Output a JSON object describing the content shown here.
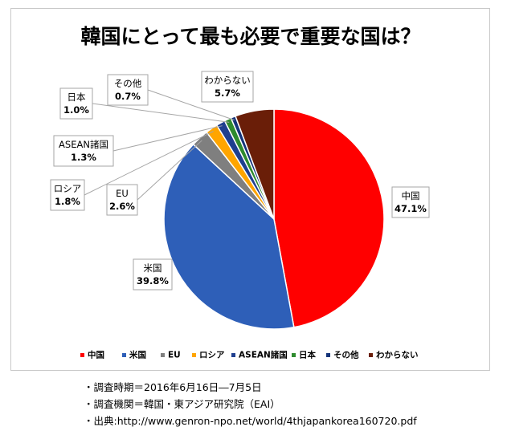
{
  "chart_data": {
    "type": "pie",
    "title": "韓国にとって最も必要で重要な国は？",
    "slices": [
      {
        "label": "中国",
        "value": 47.1,
        "value_label": "47.1%",
        "color": "#ff0000"
      },
      {
        "label": "米国",
        "value": 39.8,
        "value_label": "39.8%",
        "color": "#2e5fb8"
      },
      {
        "label": "EU",
        "value": 2.6,
        "value_label": "2.6%",
        "color": "#7f7f7f"
      },
      {
        "label": "ロシア",
        "value": 1.8,
        "value_label": "1.8%",
        "color": "#ffa500"
      },
      {
        "label": "ASEAN諸国",
        "value": 1.3,
        "value_label": "1.3%",
        "color": "#1f3f8f"
      },
      {
        "label": "日本",
        "value": 1.0,
        "value_label": "1.0%",
        "color": "#2e8b2e"
      },
      {
        "label": "その他",
        "value": 0.7,
        "value_label": "0.7%",
        "color": "#14347a"
      },
      {
        "label": "わからない",
        "value": 5.7,
        "value_label": "5.7%",
        "color": "#6a1e08"
      }
    ],
    "legend_position": "bottom",
    "start": "12 o'clock, clockwise"
  },
  "notes": [
    "・調査時期＝2016年6月16日―7月5日",
    "・調査機関＝韓国・東アジア研究院（EAI）",
    "・出典:http://www.genron-npo.net/world/4thjapankorea160720.pdf"
  ]
}
